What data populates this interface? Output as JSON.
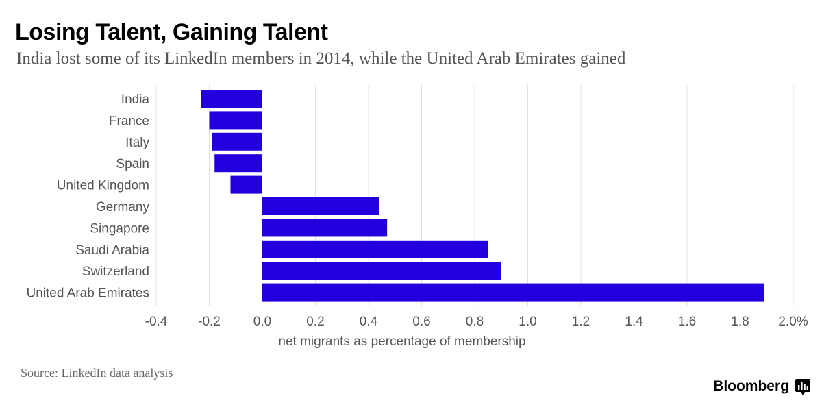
{
  "header": {
    "title": "Losing Talent, Gaining Talent",
    "subtitle": "India lost some of its LinkedIn members in 2014, while the United Arab Emirates gained"
  },
  "footer": {
    "source": "Source: LinkedIn data analysis",
    "brand": "Bloomberg",
    "brand_icon": "bloomberg-terminal-icon"
  },
  "colors": {
    "bar": "#2200dd",
    "grid": "#e0e0e0",
    "text": "#555555"
  },
  "chart_data": {
    "type": "bar",
    "orientation": "horizontal",
    "title": "Losing Talent, Gaining Talent",
    "subtitle": "India lost some of its LinkedIn members in 2014, while the United Arab Emirates gained",
    "xlabel": "net migrants as percentage of membership",
    "ylabel": "",
    "categories": [
      "India",
      "France",
      "Italy",
      "Spain",
      "United Kingdom",
      "Germany",
      "Singapore",
      "Saudi Arabia",
      "Switzerland",
      "United Arab Emirates"
    ],
    "values": [
      -0.23,
      -0.2,
      -0.19,
      -0.18,
      -0.12,
      0.44,
      0.47,
      0.85,
      0.9,
      1.89
    ],
    "xlim": [
      -0.4,
      2.0
    ],
    "x_ticks": [
      -0.4,
      -0.2,
      0.0,
      0.2,
      0.4,
      0.6,
      0.8,
      1.0,
      1.2,
      1.4,
      1.6,
      1.8,
      2.0
    ],
    "x_tick_labels": [
      "-0.4",
      "-0.2",
      "0.0",
      "0.2",
      "0.4",
      "0.6",
      "0.8",
      "1.0",
      "1.2",
      "1.4",
      "1.6",
      "1.8",
      "2.0%"
    ],
    "grid": true,
    "legend": "none"
  }
}
